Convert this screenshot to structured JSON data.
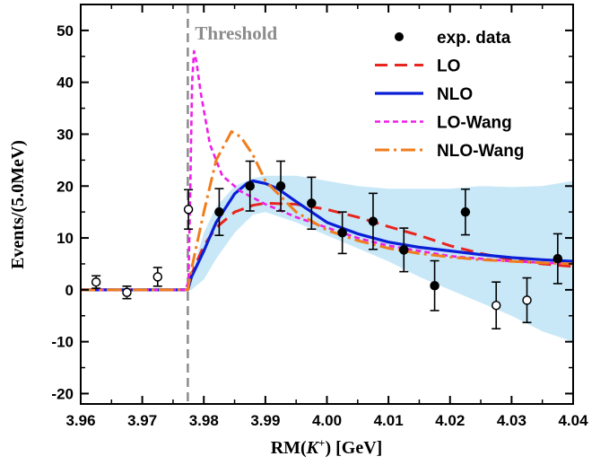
{
  "chart_data": {
    "type": "scatter",
    "xlabel": {
      "main": "RM(",
      "italic": "K",
      "sup": "+",
      "tail": ") [GeV]"
    },
    "ylabel": "Events/(5.0MeV)",
    "xlim": [
      3.96,
      4.04
    ],
    "ylim": [
      -22,
      55
    ],
    "xticks": [
      3.96,
      3.97,
      3.98,
      3.99,
      4.0,
      4.01,
      4.02,
      4.03,
      4.04
    ],
    "xtick_labels": [
      "3.96",
      "3.97",
      "3.98",
      "3.99",
      "4.00",
      "4.01",
      "4.02",
      "4.03",
      "4.04"
    ],
    "yticks": [
      -20,
      -10,
      0,
      10,
      20,
      30,
      40,
      50
    ],
    "ytick_labels": [
      "-20",
      "-10",
      "0",
      "10",
      "20",
      "30",
      "40",
      "50"
    ],
    "threshold": {
      "x": 3.9774,
      "label": "Threshold",
      "color": "#8c8c8c"
    },
    "legend_position": "top-right",
    "points": [
      {
        "x": 3.9625,
        "y": 1.5,
        "err": 1.2,
        "filled": false
      },
      {
        "x": 3.9675,
        "y": -0.5,
        "err": 1.2,
        "filled": false
      },
      {
        "x": 3.9725,
        "y": 2.5,
        "err": 1.8,
        "filled": false
      },
      {
        "x": 3.9775,
        "y": 15.5,
        "err": 3.8,
        "filled": false
      },
      {
        "x": 3.9825,
        "y": 15.0,
        "err": 4.5,
        "filled": true
      },
      {
        "x": 3.9875,
        "y": 20.0,
        "err": 4.8,
        "filled": true
      },
      {
        "x": 3.9925,
        "y": 20.0,
        "err": 4.8,
        "filled": true
      },
      {
        "x": 3.9975,
        "y": 16.7,
        "err": 5.0,
        "filled": true
      },
      {
        "x": 4.0025,
        "y": 11.0,
        "err": 4.0,
        "filled": true
      },
      {
        "x": 4.0075,
        "y": 13.2,
        "err": 5.4,
        "filled": true
      },
      {
        "x": 4.0125,
        "y": 7.7,
        "err": 4.2,
        "filled": true
      },
      {
        "x": 4.0175,
        "y": 0.8,
        "err": 4.8,
        "filled": true
      },
      {
        "x": 4.0225,
        "y": 15.0,
        "err": 4.4,
        "filled": true
      },
      {
        "x": 4.0275,
        "y": -3.0,
        "err": 4.5,
        "filled": false
      },
      {
        "x": 4.0325,
        "y": -2.0,
        "err": 4.3,
        "filled": false
      },
      {
        "x": 4.0375,
        "y": 6.0,
        "err": 4.8,
        "filled": true
      }
    ],
    "band": {
      "color": "#c8e8f8",
      "x": [
        3.9774,
        3.978,
        3.98,
        3.982,
        3.985,
        3.988,
        3.99,
        3.995,
        4.0,
        4.005,
        4.01,
        4.015,
        4.02,
        4.025,
        4.03,
        4.035,
        4.04
      ],
      "upper": [
        0.5,
        3.0,
        11.0,
        16.0,
        20.0,
        21.5,
        22.0,
        22.0,
        21.0,
        20.0,
        19.5,
        19.5,
        19.5,
        20.0,
        19.8,
        20.0,
        21.0
      ],
      "lower": [
        0.0,
        0.0,
        2.0,
        6.0,
        11.0,
        14.5,
        15.0,
        13.0,
        10.5,
        8.0,
        5.5,
        2.5,
        0.0,
        -2.5,
        -5.0,
        -8.0,
        -10.0
      ]
    },
    "series": [
      {
        "name": "LO",
        "color": "#e8251e",
        "dash": "14,8",
        "width": 3,
        "x": [
          3.96,
          3.9774,
          3.978,
          3.98,
          3.982,
          3.985,
          3.988,
          3.99,
          3.995,
          4.0,
          4.005,
          4.01,
          4.015,
          4.02,
          4.025,
          4.03,
          4.035,
          4.04
        ],
        "y": [
          0,
          0,
          3.0,
          8.5,
          12.0,
          15.0,
          16.3,
          16.7,
          16.5,
          15.5,
          14.0,
          12.2,
          10.5,
          8.5,
          7.0,
          5.8,
          5.0,
          4.5
        ]
      },
      {
        "name": "NLO",
        "color": "#0a1fd6",
        "dash": "",
        "width": 3.2,
        "x": [
          3.96,
          3.9774,
          3.978,
          3.98,
          3.982,
          3.985,
          3.987,
          3.988,
          3.99,
          3.992,
          3.995,
          4.0,
          4.005,
          4.01,
          4.015,
          4.02,
          4.025,
          4.03,
          4.035,
          4.04
        ],
        "y": [
          0,
          0,
          2.5,
          7.5,
          13.0,
          18.5,
          20.5,
          21.0,
          20.5,
          19.5,
          17.0,
          13.0,
          10.8,
          9.2,
          8.2,
          7.5,
          6.8,
          6.2,
          5.8,
          5.5
        ]
      },
      {
        "name": "LO-Wang",
        "color": "#ee1ee8",
        "dash": "6,4",
        "width": 2.6,
        "x": [
          3.96,
          3.977,
          3.9775,
          3.9778,
          3.9781,
          3.9784,
          3.9788,
          3.9795,
          3.981,
          3.983,
          3.986,
          3.99,
          3.995,
          4.0,
          4.005,
          4.01,
          4.02,
          4.03,
          4.04
        ],
        "y": [
          0,
          0,
          1.5,
          20.0,
          40.0,
          46.0,
          44.0,
          38.0,
          28.0,
          22.0,
          19.0,
          16.5,
          14.0,
          12.0,
          10.0,
          8.5,
          6.5,
          5.5,
          5.0
        ]
      },
      {
        "name": "NLO-Wang",
        "color": "#f07d1c",
        "dash": "16,5,3,5",
        "width": 3,
        "x": [
          3.96,
          3.9774,
          3.978,
          3.98,
          3.982,
          3.9845,
          3.986,
          3.988,
          3.99,
          3.995,
          4.0,
          4.005,
          4.01,
          4.015,
          4.02,
          4.025,
          4.03,
          4.035,
          4.04
        ],
        "y": [
          0,
          0,
          4.0,
          15.0,
          25.0,
          30.5,
          29.5,
          26.0,
          21.0,
          15.0,
          11.5,
          9.5,
          8.0,
          7.0,
          6.3,
          5.8,
          5.5,
          5.2,
          5.0
        ]
      }
    ],
    "legend": [
      {
        "label": "exp. data",
        "kind": "marker"
      },
      {
        "label": "LO",
        "kind": "line",
        "series": 0
      },
      {
        "label": "NLO",
        "kind": "line",
        "series": 1
      },
      {
        "label": "LO-Wang",
        "kind": "line",
        "series": 2
      },
      {
        "label": "NLO-Wang",
        "kind": "line",
        "series": 3
      }
    ]
  }
}
